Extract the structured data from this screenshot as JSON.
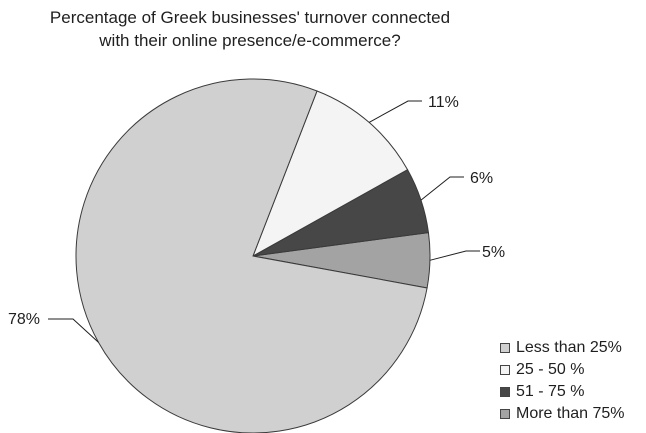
{
  "chart_data": {
    "type": "pie",
    "title": "Percentage of Greek businesses' turnover connected with their online  presence/e-commerce?",
    "title_lines": [
      "Percentage of Greek businesses' turnover connected",
      "with their online  presence/e-commerce?"
    ],
    "categories": [
      "Less than 25%",
      "25 - 50 %",
      "51 - 75 %",
      "More than 75%"
    ],
    "values": [
      78,
      11,
      6,
      5
    ],
    "data_labels": [
      "78%",
      "11%",
      "6%",
      "5%"
    ],
    "colors": [
      "#d0d0d0",
      "#f4f4f4",
      "#474747",
      "#a3a3a3"
    ],
    "legend_position": "bottom-right"
  }
}
